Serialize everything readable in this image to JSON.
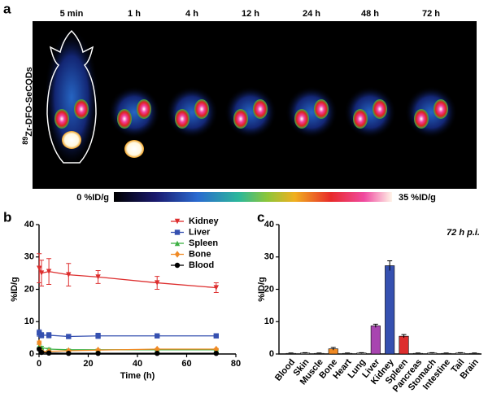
{
  "panel_a": {
    "label": "a",
    "times": [
      "5 min",
      "1 h",
      "4 h",
      "12 h",
      "24 h",
      "48 h",
      "72 h"
    ],
    "agent_sup": "89",
    "agent": "Zr-DFO-SeCQDs",
    "colorbar_min": "0 %ID/g",
    "colorbar_max": "35 %ID/g"
  },
  "chart_data": [
    {
      "type": "line",
      "panel": "b",
      "xlabel": "Time (h)",
      "ylabel": "%ID/g",
      "x": [
        0.083,
        1,
        4,
        12,
        24,
        48,
        72
      ],
      "xlim": [
        0,
        80
      ],
      "xticks": [
        0,
        20,
        40,
        60,
        80
      ],
      "ylim": [
        0,
        40
      ],
      "yticks": [
        0,
        10,
        20,
        30,
        40
      ],
      "legend": "top-right",
      "series": [
        {
          "name": "Kidney",
          "color": "#dd2e2e",
          "marker": "triangle-down",
          "values": [
            26.5,
            25,
            25.5,
            24.5,
            23.8,
            22,
            20.5
          ],
          "errors": [
            4.5,
            4,
            4,
            3.5,
            2,
            2,
            1.5
          ]
        },
        {
          "name": "Liver",
          "color": "#3550b0",
          "marker": "square",
          "values": [
            6.5,
            5.8,
            5.8,
            5.4,
            5.6,
            5.6,
            5.6
          ],
          "errors": [
            1,
            0.8,
            0.8,
            0.3,
            0.8,
            0.3,
            0.3
          ]
        },
        {
          "name": "Spleen",
          "color": "#3cb043",
          "marker": "triangle-up",
          "values": [
            2.5,
            2,
            1.5,
            1.3,
            1.3,
            1.3,
            1.3
          ],
          "errors": [
            0.5,
            0.4,
            0.3,
            0.2,
            0.2,
            0.2,
            0.2
          ]
        },
        {
          "name": "Bone",
          "color": "#f08a24",
          "marker": "diamond",
          "values": [
            3.5,
            0.8,
            0.8,
            1,
            1.2,
            1.5,
            1.5
          ],
          "errors": [
            0.5,
            0.2,
            0.2,
            0.2,
            0.2,
            0.2,
            0.2
          ]
        },
        {
          "name": "Blood",
          "color": "#000000",
          "marker": "circle",
          "values": [
            1.5,
            0.5,
            0.3,
            0.2,
            0.2,
            0.2,
            0.2
          ],
          "errors": [
            0.3,
            0.1,
            0.1,
            0.1,
            0.1,
            0.1,
            0.1
          ]
        }
      ]
    },
    {
      "type": "bar",
      "panel": "c",
      "annotation": "72 h p.i.",
      "ylabel": "%ID/g",
      "categories": [
        "Blood",
        "Skin",
        "Muscle",
        "Bone",
        "Heart",
        "Lung",
        "Liver",
        "Kidney",
        "Spleen",
        "Pancreas",
        "Stomach",
        "Intestine",
        "Tail",
        "Brain"
      ],
      "values": [
        0.2,
        0.3,
        0.2,
        1.6,
        0.2,
        0.3,
        8.7,
        27.3,
        5.5,
        0.2,
        0.3,
        0.2,
        0.3,
        0.2
      ],
      "errors": [
        0.1,
        0.1,
        0.1,
        0.4,
        0.1,
        0.1,
        0.5,
        1.5,
        0.5,
        0.1,
        0.1,
        0.1,
        0.1,
        0.1
      ],
      "colors": [
        "#bdbdbd",
        "#bdbdbd",
        "#bdbdbd",
        "#f08a24",
        "#bdbdbd",
        "#bdbdbd",
        "#a845b0",
        "#3550b0",
        "#dd2e2e",
        "#bdbdbd",
        "#bdbdbd",
        "#bdbdbd",
        "#bdbdbd",
        "#bdbdbd"
      ],
      "ylim": [
        0,
        40
      ],
      "yticks": [
        0,
        10,
        20,
        30,
        40
      ]
    }
  ]
}
